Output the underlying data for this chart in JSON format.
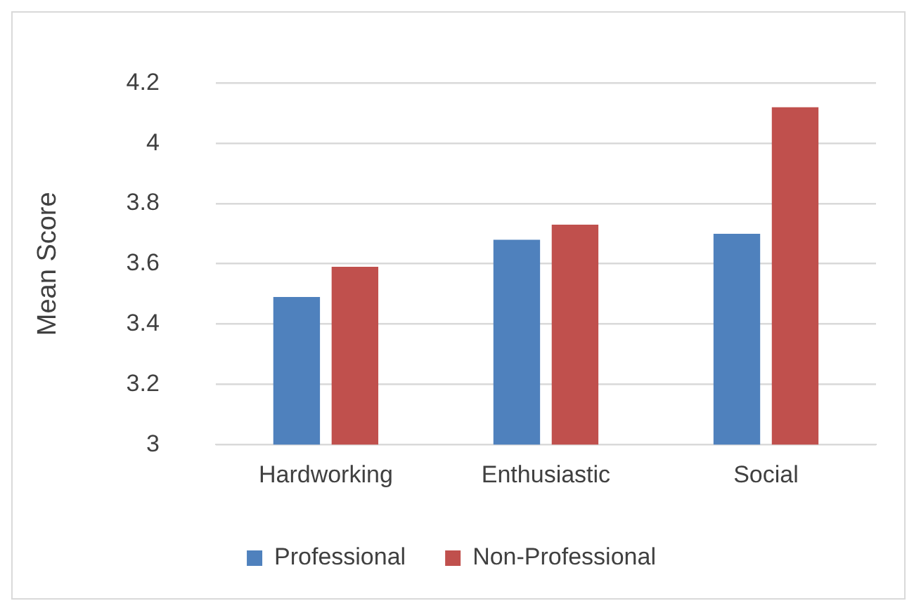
{
  "chart_data": {
    "type": "bar",
    "ylabel": "Mean Score",
    "categories": [
      "Hardworking",
      "Enthusiastic",
      "Social"
    ],
    "series": [
      {
        "name": "Professional",
        "color": "#4f81bd",
        "values": [
          3.49,
          3.68,
          3.7
        ]
      },
      {
        "name": "Non-Professional",
        "color": "#c0504d",
        "values": [
          3.59,
          3.73,
          4.12
        ]
      }
    ],
    "ylim": [
      3,
      4.2
    ],
    "yticks": [
      3,
      3.2,
      3.4,
      3.6,
      3.8,
      4,
      4.2
    ],
    "grid": "y",
    "legend": "bottom"
  }
}
